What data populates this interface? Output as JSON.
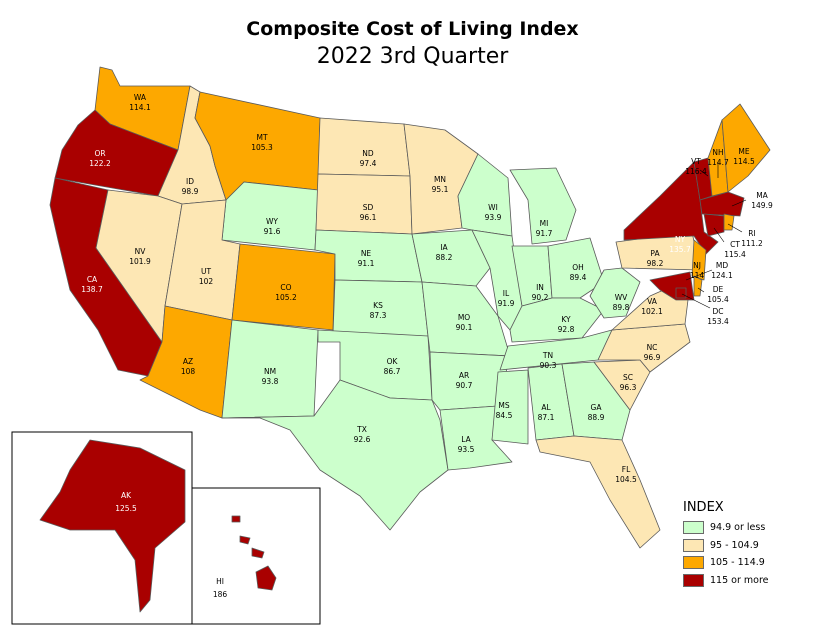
{
  "title": "Composite Cost of Living Index",
  "subtitle": "2022 3rd Quarter",
  "colors": {
    "c1": "#ccffcc",
    "c2": "#fde7b4",
    "c3": "#fda800",
    "c4": "#a90000"
  },
  "legend": {
    "title": "INDEX",
    "items": [
      {
        "label": "94.9 or less",
        "color": "#ccffcc"
      },
      {
        "label": "95 - 104.9",
        "color": "#fde7b4"
      },
      {
        "label": "105 - 114.9",
        "color": "#fda800"
      },
      {
        "label": "115 or more",
        "color": "#a90000"
      }
    ]
  },
  "states": [
    {
      "abbr": "WA",
      "value": "114.1"
    },
    {
      "abbr": "OR",
      "value": "122.2"
    },
    {
      "abbr": "CA",
      "value": "138.7"
    },
    {
      "abbr": "ID",
      "value": "98.9"
    },
    {
      "abbr": "NV",
      "value": "101.9"
    },
    {
      "abbr": "MT",
      "value": "105.3"
    },
    {
      "abbr": "WY",
      "value": "91.6"
    },
    {
      "abbr": "UT",
      "value": "102"
    },
    {
      "abbr": "AZ",
      "value": "108"
    },
    {
      "abbr": "CO",
      "value": "105.2"
    },
    {
      "abbr": "NM",
      "value": "93.8"
    },
    {
      "abbr": "ND",
      "value": "97.4"
    },
    {
      "abbr": "SD",
      "value": "96.1"
    },
    {
      "abbr": "NE",
      "value": "91.1"
    },
    {
      "abbr": "KS",
      "value": "87.3"
    },
    {
      "abbr": "OK",
      "value": "86.7"
    },
    {
      "abbr": "TX",
      "value": "92.6"
    },
    {
      "abbr": "MN",
      "value": "95.1"
    },
    {
      "abbr": "IA",
      "value": "88.2"
    },
    {
      "abbr": "MO",
      "value": "90.1"
    },
    {
      "abbr": "AR",
      "value": "90.7"
    },
    {
      "abbr": "LA",
      "value": "93.5"
    },
    {
      "abbr": "WI",
      "value": "93.9"
    },
    {
      "abbr": "IL",
      "value": "91.9"
    },
    {
      "abbr": "MI",
      "value": "91.7"
    },
    {
      "abbr": "IN",
      "value": "90.2"
    },
    {
      "abbr": "OH",
      "value": "89.4"
    },
    {
      "abbr": "KY",
      "value": "92.8"
    },
    {
      "abbr": "TN",
      "value": "90.3"
    },
    {
      "abbr": "MS",
      "value": "84.5"
    },
    {
      "abbr": "AL",
      "value": "87.1"
    },
    {
      "abbr": "GA",
      "value": "88.9"
    },
    {
      "abbr": "FL",
      "value": "104.5"
    },
    {
      "abbr": "SC",
      "value": "96.3"
    },
    {
      "abbr": "NC",
      "value": "96.9"
    },
    {
      "abbr": "VA",
      "value": "102.1"
    },
    {
      "abbr": "WV",
      "value": "89.8"
    },
    {
      "abbr": "PA",
      "value": "98.2"
    },
    {
      "abbr": "NY",
      "value": "135.7"
    },
    {
      "abbr": "NJ",
      "value": "114"
    },
    {
      "abbr": "VT",
      "value": "116.4"
    },
    {
      "abbr": "NH",
      "value": "114.7"
    },
    {
      "abbr": "ME",
      "value": "114.5"
    },
    {
      "abbr": "MA",
      "value": "149.9"
    },
    {
      "abbr": "CT",
      "value": "115.4"
    },
    {
      "abbr": "RI",
      "value": "111.2"
    },
    {
      "abbr": "MD",
      "value": "124.1"
    },
    {
      "abbr": "DE",
      "value": "105.4"
    },
    {
      "abbr": "DC",
      "value": "153.4"
    },
    {
      "abbr": "AK",
      "value": "125.5"
    },
    {
      "abbr": "HI",
      "value": "186"
    }
  ]
}
